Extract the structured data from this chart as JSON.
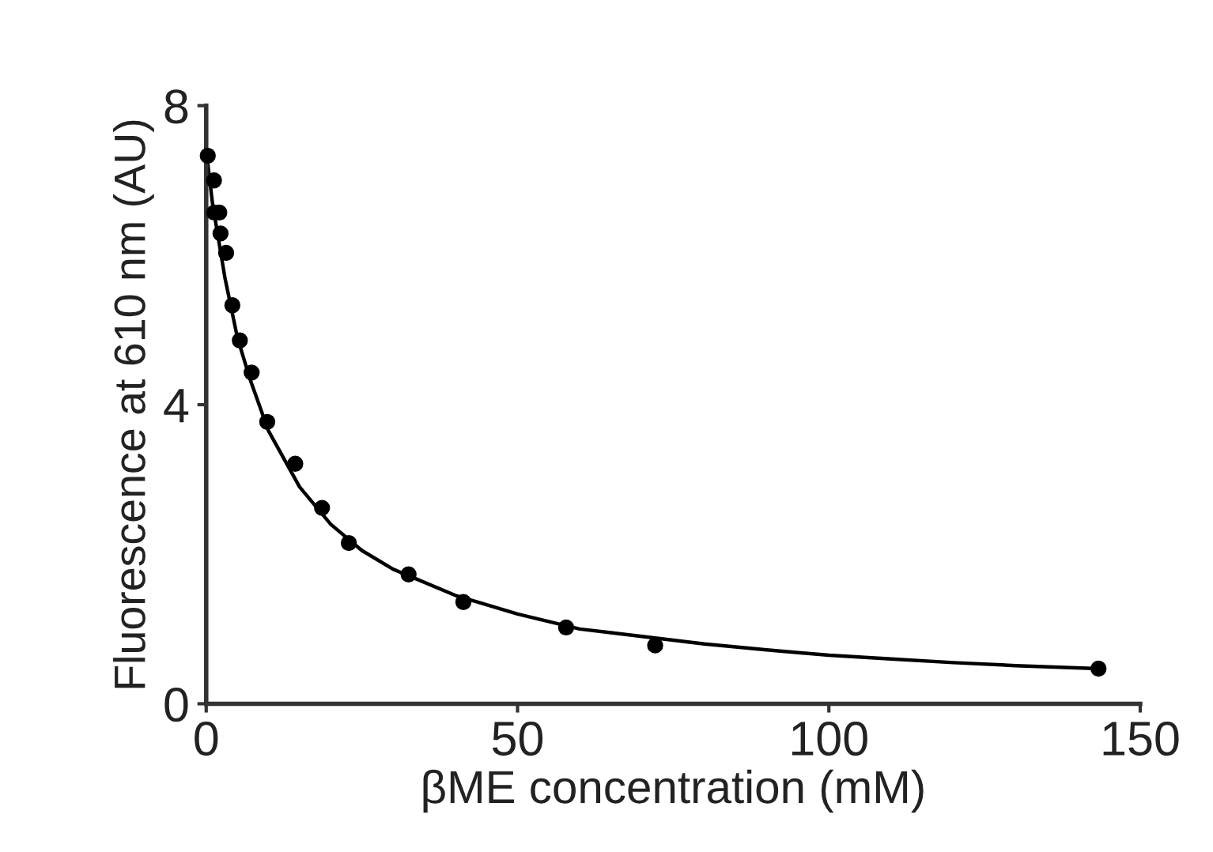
{
  "chart_data": {
    "type": "scatter",
    "xlabel": "βME concentration (mM)",
    "ylabel": "Fluorescence at 610 nm (AU)",
    "xlim": [
      0,
      150
    ],
    "xticks": [
      0,
      50,
      100,
      150
    ],
    "ylim": [
      0,
      8
    ],
    "yticks": [
      0,
      4,
      8
    ],
    "grid": false,
    "legend": false,
    "series": [
      {
        "color": "#000000",
        "marker": "circle",
        "x": [
          0.25,
          1.25,
          1.3,
          2.1,
          2.3,
          3.2,
          4.2,
          5.4,
          7.3,
          9.8,
          14.3,
          18.6,
          22.9,
          32.5,
          41.3,
          57.8,
          72.1,
          143.3
        ],
        "values": [
          7.33,
          7.0,
          6.57,
          6.57,
          6.29,
          6.03,
          5.33,
          4.86,
          4.43,
          3.77,
          3.21,
          2.62,
          2.15,
          1.73,
          1.36,
          1.02,
          0.78,
          0.47
        ]
      },
      {
        "type": "line",
        "color": "#000000",
        "marker": "none",
        "line_style": "solid",
        "x": [
          0,
          1,
          2,
          3,
          5,
          7,
          10,
          15,
          20,
          25,
          30,
          40,
          50,
          60,
          70,
          80,
          90,
          100,
          110,
          120,
          130,
          143
        ],
        "values": [
          7.4,
          6.7,
          6.2,
          5.7,
          4.9,
          4.35,
          3.65,
          2.9,
          2.4,
          2.05,
          1.8,
          1.45,
          1.2,
          1.0,
          0.9,
          0.8,
          0.72,
          0.65,
          0.6,
          0.55,
          0.51,
          0.47
        ]
      }
    ]
  }
}
